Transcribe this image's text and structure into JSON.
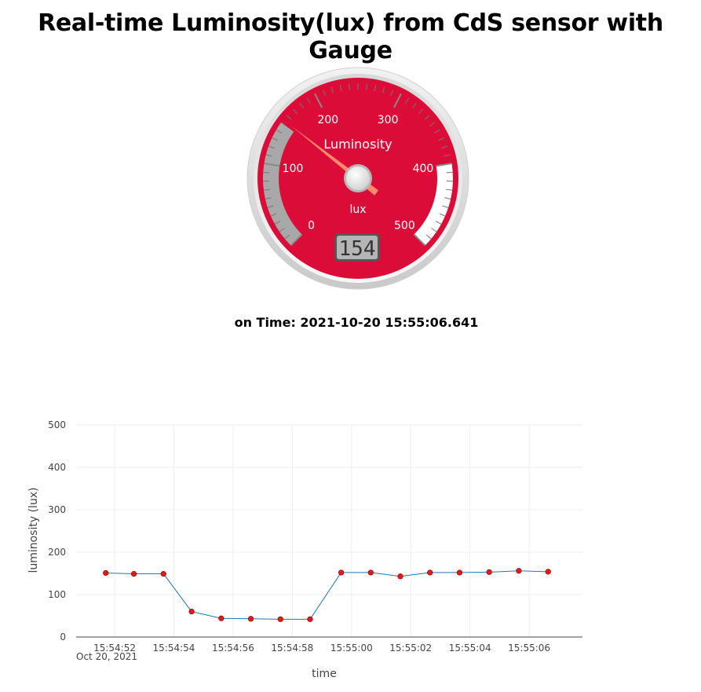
{
  "title": "Real-time Luminosity(lux) from CdS sensor with Gauge",
  "gauge": {
    "title": "Luminosity",
    "units": "lux",
    "value": 154,
    "value_text": "154",
    "min": 0,
    "max": 500,
    "major_ticks": [
      "0",
      "100",
      "200",
      "300",
      "400",
      "500"
    ],
    "highlights": [
      {
        "from": 0,
        "to": 150,
        "color": "#a8a8a8"
      },
      {
        "from": 150,
        "to": 400,
        "color": "#dc0c38"
      },
      {
        "from": 400,
        "to": 500,
        "color": "#ffffff"
      }
    ],
    "colors": {
      "plate": "#dc0c38",
      "needle": "#ff9070",
      "numbers": "#ffffff"
    }
  },
  "time_label": "on Time: 2021-10-20 15:55:06.641",
  "chart_data": {
    "type": "line",
    "xlabel": "time",
    "ylabel": "luminosity (lux)",
    "ylim": [
      0,
      500
    ],
    "yticks": [
      0,
      100,
      200,
      300,
      400,
      500
    ],
    "xlim": [
      "2021-10-20 15:54:50.70",
      "2021-10-20 15:55:07.80"
    ],
    "xticks": [
      "15:54:52",
      "15:54:54",
      "15:54:56",
      "15:54:58",
      "15:55:00",
      "15:55:02",
      "15:55:04",
      "15:55:06"
    ],
    "xtick_date": "Oct 20, 2021",
    "grid": true,
    "line_color": "#1f77b4",
    "marker_color": "#e31a1c",
    "series": [
      {
        "x": [
          "2021-10-20 15:54:51.70",
          "2021-10-20 15:54:52.65",
          "2021-10-20 15:54:53.65",
          "2021-10-20 15:54:54.60",
          "2021-10-20 15:54:55.60",
          "2021-10-20 15:54:56.60",
          "2021-10-20 15:54:57.60",
          "2021-10-20 15:54:58.60",
          "2021-10-20 15:54:59.65",
          "2021-10-20 15:55:00.65",
          "2021-10-20 15:55:01.65",
          "2021-10-20 15:55:02.65",
          "2021-10-20 15:55:03.65",
          "2021-10-20 15:55:04.65",
          "2021-10-20 15:55:05.65",
          "2021-10-20 15:55:06.64"
        ],
        "y": [
          151,
          149,
          149,
          60,
          44,
          43,
          42,
          42,
          152,
          152,
          143,
          152,
          152,
          153,
          156,
          154
        ]
      }
    ]
  }
}
